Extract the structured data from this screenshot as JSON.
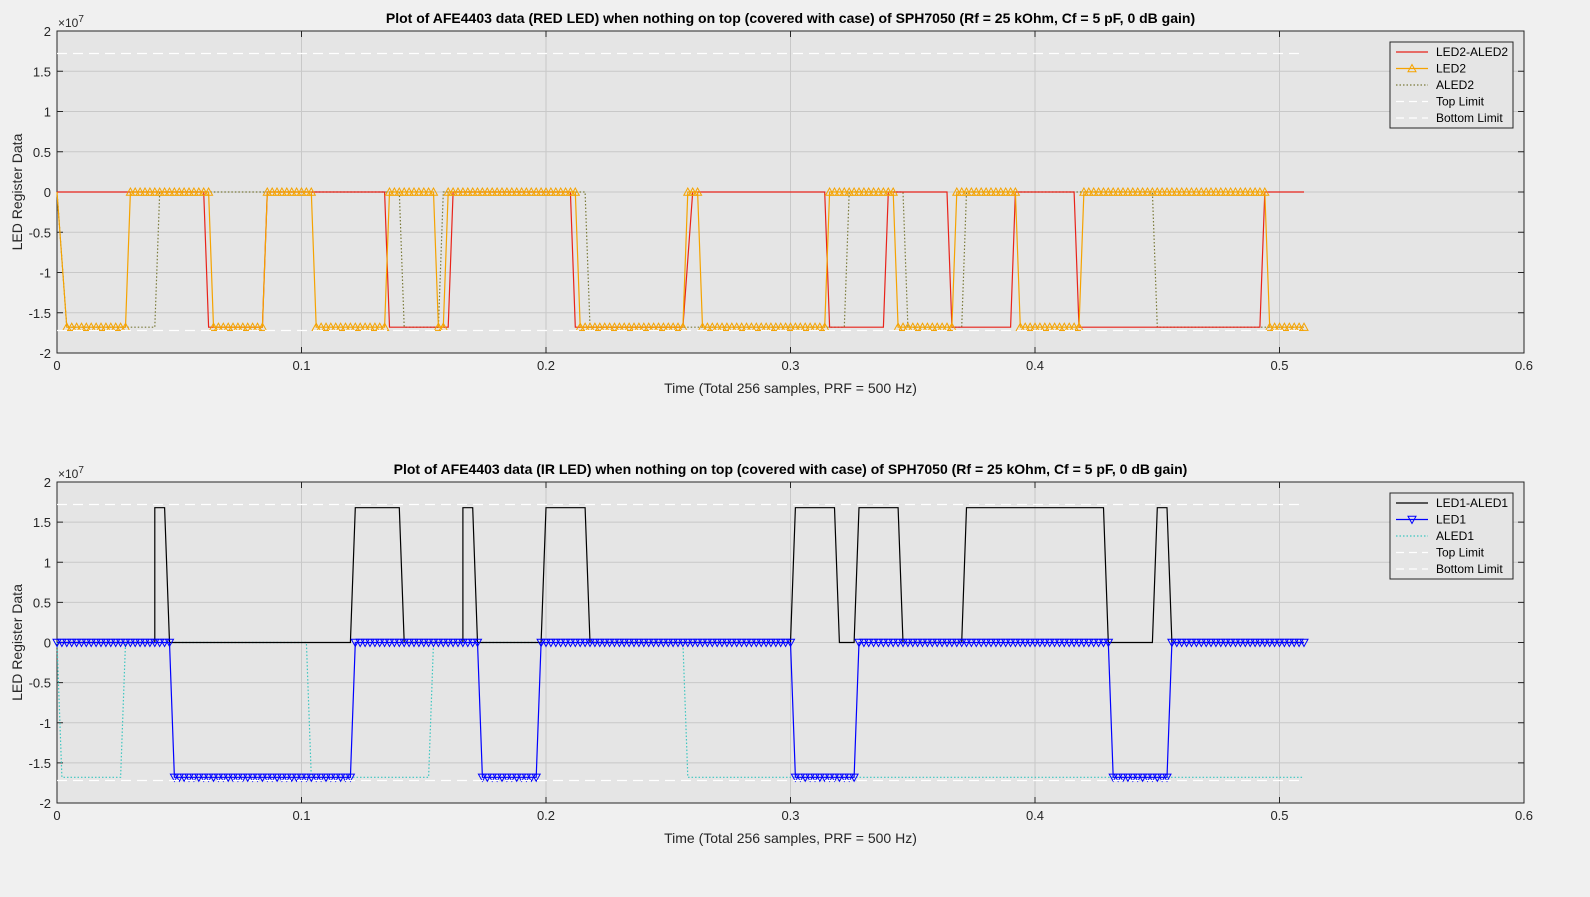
{
  "chart_data": [
    {
      "type": "line",
      "title": "Plot of AFE4403 data (RED LED) when nothing on top (covered with case) of SPH7050 (Rf = 25 kOhm, Cf = 5 pF, 0 dB gain)",
      "xlabel": "Time (Total 256 samples, PRF = 500 Hz)",
      "ylabel": "LED Register Data",
      "exponent_label": "×10",
      "exponent_power": "7",
      "xlim": [
        0,
        0.6
      ],
      "ylim": [
        -2,
        2
      ],
      "xticks": [
        "0",
        "0.1",
        "0.2",
        "0.3",
        "0.4",
        "0.5",
        "0.6"
      ],
      "yticks": [
        "2",
        "1.5",
        "1",
        "0.5",
        "0",
        "-0.5",
        "-1",
        "-1.5",
        "-2"
      ],
      "y_multiplier": 10000000,
      "grid": true,
      "legend_position": "top-right",
      "legend": [
        "LED2-ALED2",
        "LED2",
        "ALED2",
        "Top Limit",
        "Bottom Limit"
      ],
      "colors": {
        "diff": "#e8231a",
        "led": "#f5a300",
        "aled": "#7a7a3a",
        "limit": "#ffffff"
      },
      "series": [
        {
          "name": "LED2-ALED2",
          "style": "solid",
          "marker": "none",
          "segments": [
            [
              0,
              0
            ],
            [
              0.06,
              0
            ],
            [
              0.062,
              -1.68
            ],
            [
              0.084,
              -1.68
            ],
            [
              0.086,
              0
            ],
            [
              0.134,
              0
            ],
            [
              0.136,
              -1.68
            ],
            [
              0.16,
              -1.68
            ],
            [
              0.162,
              0
            ],
            [
              0.21,
              0
            ],
            [
              0.212,
              -1.68
            ],
            [
              0.256,
              -1.68
            ],
            [
              0.26,
              0
            ],
            [
              0.314,
              0
            ],
            [
              0.316,
              -1.68
            ],
            [
              0.338,
              -1.68
            ],
            [
              0.34,
              0
            ],
            [
              0.364,
              0
            ],
            [
              0.366,
              -1.68
            ],
            [
              0.39,
              -1.68
            ],
            [
              0.392,
              0
            ],
            [
              0.416,
              0
            ],
            [
              0.418,
              -1.68
            ],
            [
              0.492,
              -1.68
            ],
            [
              0.494,
              0
            ],
            [
              0.51,
              0
            ]
          ]
        },
        {
          "name": "LED2",
          "style": "solid",
          "marker": "triangle-up",
          "segments": [
            [
              0,
              0
            ],
            [
              0.004,
              -1.68
            ],
            [
              0.028,
              -1.68
            ],
            [
              0.03,
              0
            ],
            [
              0.062,
              0
            ],
            [
              0.064,
              -1.68
            ],
            [
              0.084,
              -1.68
            ],
            [
              0.086,
              0
            ],
            [
              0.104,
              0
            ],
            [
              0.106,
              -1.68
            ],
            [
              0.134,
              -1.68
            ],
            [
              0.136,
              0
            ],
            [
              0.154,
              0
            ],
            [
              0.156,
              -1.68
            ],
            [
              0.158,
              -1.68
            ],
            [
              0.16,
              0
            ],
            [
              0.212,
              0
            ],
            [
              0.214,
              -1.68
            ],
            [
              0.256,
              -1.68
            ],
            [
              0.258,
              0
            ],
            [
              0.262,
              0
            ],
            [
              0.264,
              -1.68
            ],
            [
              0.314,
              -1.68
            ],
            [
              0.316,
              0
            ],
            [
              0.342,
              0
            ],
            [
              0.344,
              -1.68
            ],
            [
              0.366,
              -1.68
            ],
            [
              0.368,
              0
            ],
            [
              0.392,
              0
            ],
            [
              0.394,
              -1.68
            ],
            [
              0.418,
              -1.68
            ],
            [
              0.42,
              0
            ],
            [
              0.494,
              0
            ],
            [
              0.496,
              -1.68
            ],
            [
              0.51,
              -1.68
            ]
          ]
        },
        {
          "name": "ALED2",
          "style": "dotted",
          "marker": "none",
          "segments": [
            [
              0,
              0
            ],
            [
              0.004,
              -1.68
            ],
            [
              0.04,
              -1.68
            ],
            [
              0.042,
              0
            ],
            [
              0.14,
              0
            ],
            [
              0.142,
              -1.68
            ],
            [
              0.156,
              -1.68
            ],
            [
              0.158,
              0
            ],
            [
              0.216,
              0
            ],
            [
              0.218,
              -1.68
            ],
            [
              0.322,
              -1.68
            ],
            [
              0.324,
              0
            ],
            [
              0.346,
              0
            ],
            [
              0.348,
              -1.68
            ],
            [
              0.37,
              -1.68
            ],
            [
              0.372,
              0
            ],
            [
              0.448,
              0
            ],
            [
              0.45,
              -1.68
            ],
            [
              0.51,
              -1.68
            ]
          ]
        },
        {
          "name": "Top Limit",
          "style": "dashed",
          "marker": "none",
          "value": 1.72,
          "range": [
            0,
            0.51
          ]
        },
        {
          "name": "Bottom Limit",
          "style": "dashed",
          "marker": "none",
          "value": -1.72,
          "range": [
            0,
            0.51
          ]
        }
      ]
    },
    {
      "type": "line",
      "title": "Plot of AFE4403 data (IR LED) when nothing on top (covered with case) of SPH7050 (Rf = 25 kOhm, Cf = 5 pF, 0 dB gain)",
      "xlabel": "Time (Total 256 samples, PRF = 500 Hz)",
      "ylabel": "LED Register Data",
      "exponent_label": "×10",
      "exponent_power": "7",
      "xlim": [
        0,
        0.6
      ],
      "ylim": [
        -2,
        2
      ],
      "xticks": [
        "0",
        "0.1",
        "0.2",
        "0.3",
        "0.4",
        "0.5",
        "0.6"
      ],
      "yticks": [
        "2",
        "1.5",
        "1",
        "0.5",
        "0",
        "-0.5",
        "-1",
        "-1.5",
        "-2"
      ],
      "y_multiplier": 10000000,
      "grid": true,
      "legend_position": "top-right",
      "legend": [
        "LED1-ALED1",
        "LED1",
        "ALED1",
        "Top Limit",
        "Bottom Limit"
      ],
      "colors": {
        "diff": "#000000",
        "led": "#0000ff",
        "aled": "#3cc6c0",
        "limit": "#ffffff"
      },
      "series": [
        {
          "name": "LED1-ALED1",
          "style": "solid",
          "marker": "none",
          "segments": [
            [
              0,
              0
            ],
            [
              0.04,
              0
            ],
            [
              0.04,
              1.68
            ],
            [
              0.044,
              1.68
            ],
            [
              0.046,
              0
            ],
            [
              0.12,
              0
            ],
            [
              0.122,
              1.68
            ],
            [
              0.14,
              1.68
            ],
            [
              0.142,
              0
            ],
            [
              0.166,
              0
            ],
            [
              0.166,
              1.68
            ],
            [
              0.17,
              1.68
            ],
            [
              0.172,
              0
            ],
            [
              0.198,
              0
            ],
            [
              0.2,
              1.68
            ],
            [
              0.216,
              1.68
            ],
            [
              0.218,
              0
            ],
            [
              0.3,
              0
            ],
            [
              0.302,
              1.68
            ],
            [
              0.318,
              1.68
            ],
            [
              0.32,
              0
            ],
            [
              0.326,
              0
            ],
            [
              0.328,
              1.68
            ],
            [
              0.344,
              1.68
            ],
            [
              0.346,
              0
            ],
            [
              0.37,
              0
            ],
            [
              0.372,
              1.68
            ],
            [
              0.428,
              1.68
            ],
            [
              0.43,
              0
            ],
            [
              0.448,
              0
            ],
            [
              0.45,
              1.68
            ],
            [
              0.454,
              1.68
            ],
            [
              0.456,
              0
            ],
            [
              0.51,
              0
            ]
          ]
        },
        {
          "name": "LED1",
          "style": "solid",
          "marker": "triangle-down",
          "segments": [
            [
              0,
              0
            ],
            [
              0.046,
              0
            ],
            [
              0.048,
              -1.68
            ],
            [
              0.12,
              -1.68
            ],
            [
              0.122,
              0
            ],
            [
              0.172,
              0
            ],
            [
              0.174,
              -1.68
            ],
            [
              0.196,
              -1.68
            ],
            [
              0.198,
              0
            ],
            [
              0.3,
              0
            ],
            [
              0.302,
              -1.68
            ],
            [
              0.326,
              -1.68
            ],
            [
              0.328,
              0
            ],
            [
              0.43,
              0
            ],
            [
              0.432,
              -1.68
            ],
            [
              0.454,
              -1.68
            ],
            [
              0.456,
              0
            ],
            [
              0.51,
              0
            ]
          ]
        },
        {
          "name": "ALED1",
          "style": "dotted",
          "marker": "none",
          "segments": [
            [
              0,
              0
            ],
            [
              0.002,
              -1.68
            ],
            [
              0.026,
              -1.68
            ],
            [
              0.028,
              0
            ],
            [
              0.102,
              0
            ],
            [
              0.104,
              -1.68
            ],
            [
              0.152,
              -1.68
            ],
            [
              0.154,
              0
            ],
            [
              0.256,
              0
            ],
            [
              0.258,
              -1.68
            ],
            [
              0.51,
              -1.68
            ]
          ]
        },
        {
          "name": "Top Limit",
          "style": "dashed",
          "marker": "none",
          "value": 1.72,
          "range": [
            0,
            0.51
          ]
        },
        {
          "name": "Bottom Limit",
          "style": "dashed",
          "marker": "none",
          "value": -1.72,
          "range": [
            0,
            0.51
          ]
        }
      ]
    }
  ]
}
